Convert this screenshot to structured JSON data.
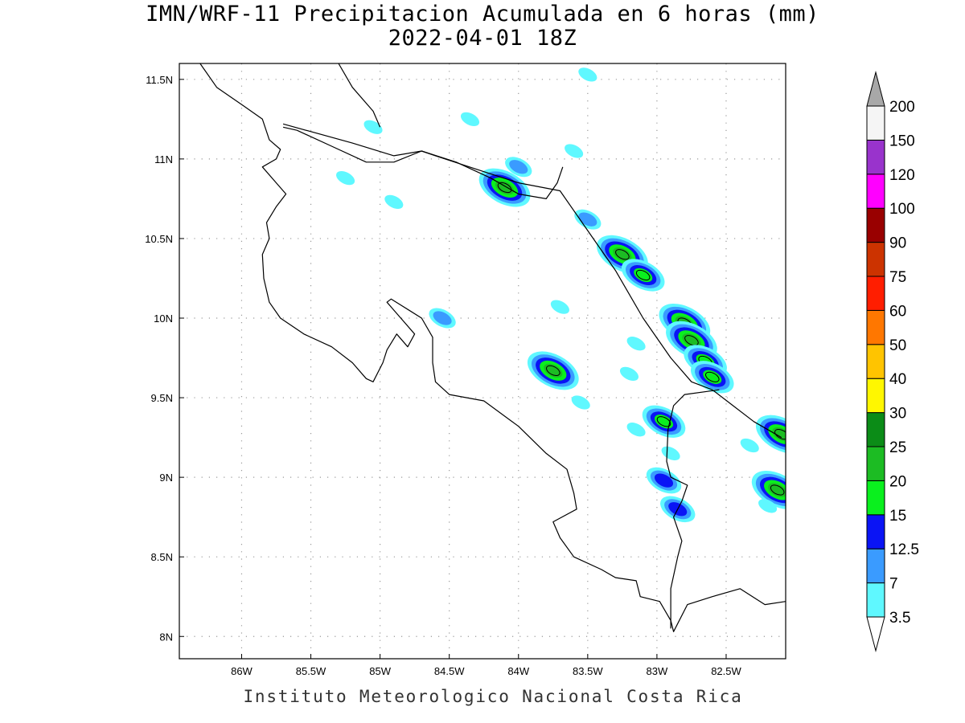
{
  "title": "IMN/WRF-11 Precipitacion Acumulada en 6 horas (mm)",
  "subtitle": "2022-04-01 18Z",
  "credit": "Instituto Meteorologico Nacional Costa Rica",
  "map": {
    "lon_range": [
      -86.45,
      -82.07
    ],
    "lat_range": [
      7.86,
      11.6
    ],
    "lon_ticks": [
      {
        "value": -86.0,
        "label": "86W"
      },
      {
        "value": -85.5,
        "label": "85.5W"
      },
      {
        "value": -85.0,
        "label": "85W"
      },
      {
        "value": -84.5,
        "label": "84.5W"
      },
      {
        "value": -84.0,
        "label": "84W"
      },
      {
        "value": -83.5,
        "label": "83.5W"
      },
      {
        "value": -83.0,
        "label": "83W"
      },
      {
        "value": -82.5,
        "label": "82.5W"
      }
    ],
    "lat_ticks": [
      {
        "value": 11.5,
        "label": "11.5N"
      },
      {
        "value": 11.0,
        "label": "11N"
      },
      {
        "value": 10.5,
        "label": "10.5N"
      },
      {
        "value": 10.0,
        "label": "10N"
      },
      {
        "value": 9.5,
        "label": "9.5N"
      },
      {
        "value": 9.0,
        "label": "9N"
      },
      {
        "value": 8.5,
        "label": "8.5N"
      },
      {
        "value": 8.0,
        "label": "8N"
      }
    ],
    "grid": true,
    "coastline": [
      [
        -86.3,
        11.6
      ],
      [
        -86.18,
        11.45
      ],
      [
        -85.98,
        11.33
      ],
      [
        -85.85,
        11.25
      ],
      [
        -85.8,
        11.12
      ],
      [
        -85.72,
        11.06
      ],
      [
        -85.75,
        11.0
      ],
      [
        -85.85,
        10.95
      ],
      [
        -85.75,
        10.85
      ],
      [
        -85.68,
        10.78
      ],
      [
        -85.75,
        10.7
      ],
      [
        -85.82,
        10.6
      ],
      [
        -85.8,
        10.5
      ],
      [
        -85.85,
        10.4
      ],
      [
        -85.84,
        10.25
      ],
      [
        -85.8,
        10.1
      ],
      [
        -85.72,
        10.0
      ],
      [
        -85.55,
        9.9
      ],
      [
        -85.35,
        9.82
      ],
      [
        -85.2,
        9.72
      ],
      [
        -85.1,
        9.62
      ],
      [
        -85.05,
        9.6
      ],
      [
        -84.98,
        9.72
      ],
      [
        -84.95,
        9.8
      ],
      [
        -84.88,
        9.9
      ],
      [
        -84.8,
        9.82
      ],
      [
        -84.75,
        9.9
      ],
      [
        -84.85,
        10.0
      ],
      [
        -84.9,
        10.05
      ],
      [
        -84.95,
        10.1
      ],
      [
        -84.92,
        10.12
      ],
      [
        -84.7,
        10.0
      ],
      [
        -84.62,
        9.88
      ],
      [
        -84.62,
        9.72
      ],
      [
        -84.6,
        9.6
      ],
      [
        -84.5,
        9.52
      ],
      [
        -84.25,
        9.48
      ],
      [
        -84.0,
        9.32
      ],
      [
        -83.8,
        9.15
      ],
      [
        -83.65,
        9.05
      ],
      [
        -83.6,
        8.9
      ],
      [
        -83.58,
        8.8
      ],
      [
        -83.75,
        8.72
      ],
      [
        -83.7,
        8.62
      ],
      [
        -83.6,
        8.5
      ],
      [
        -83.4,
        8.42
      ],
      [
        -83.3,
        8.37
      ],
      [
        -83.15,
        8.35
      ],
      [
        -83.12,
        8.25
      ],
      [
        -82.98,
        8.22
      ],
      [
        -82.9,
        8.1
      ],
      [
        -82.88,
        8.03
      ],
      [
        -82.78,
        8.2
      ],
      [
        -82.6,
        8.25
      ],
      [
        -82.4,
        8.3
      ],
      [
        -82.22,
        8.2
      ],
      [
        -82.07,
        8.22
      ]
    ],
    "caribbean_coast": [
      [
        -85.7,
        11.22
      ],
      [
        -85.2,
        11.1
      ],
      [
        -84.9,
        11.02
      ],
      [
        -84.7,
        11.05
      ],
      [
        -84.6,
        11.02
      ],
      [
        -84.25,
        10.92
      ],
      [
        -84.0,
        10.85
      ],
      [
        -83.7,
        10.8
      ],
      [
        -83.5,
        10.55
      ],
      [
        -83.3,
        10.3
      ],
      [
        -83.1,
        10.0
      ],
      [
        -82.9,
        9.75
      ],
      [
        -82.75,
        9.6
      ],
      [
        -82.6,
        9.55
      ],
      [
        -82.45,
        9.45
      ],
      [
        -82.3,
        9.35
      ],
      [
        -82.2,
        9.3
      ],
      [
        -82.1,
        9.25
      ]
    ],
    "border_north": [
      [
        -85.7,
        11.2
      ],
      [
        -85.6,
        11.18
      ],
      [
        -85.35,
        11.08
      ],
      [
        -85.1,
        10.98
      ],
      [
        -84.9,
        10.98
      ],
      [
        -84.7,
        11.05
      ],
      [
        -84.45,
        10.98
      ],
      [
        -84.2,
        10.88
      ],
      [
        -84.0,
        10.78
      ],
      [
        -83.8,
        10.75
      ],
      [
        -83.72,
        10.85
      ],
      [
        -83.68,
        10.95
      ]
    ],
    "border_east": [
      [
        -82.55,
        9.55
      ],
      [
        -82.8,
        9.52
      ],
      [
        -82.88,
        9.45
      ],
      [
        -82.92,
        9.3
      ],
      [
        -82.93,
        9.1
      ],
      [
        -82.9,
        9.0
      ],
      [
        -82.78,
        8.95
      ],
      [
        -82.82,
        8.85
      ],
      [
        -82.88,
        8.75
      ],
      [
        -82.82,
        8.6
      ],
      [
        -82.85,
        8.5
      ],
      [
        -82.9,
        8.3
      ],
      [
        -82.9,
        8.05
      ]
    ],
    "lake_nicaragua_shore": [
      [
        -85.3,
        11.6
      ],
      [
        -85.2,
        11.45
      ],
      [
        -85.05,
        11.3
      ],
      [
        -85.0,
        11.2
      ]
    ]
  },
  "precip_cells": [
    {
      "lon": -84.1,
      "lat": 10.82,
      "value": 20
    },
    {
      "lon": -83.25,
      "lat": 10.4,
      "value": 20
    },
    {
      "lon": -82.8,
      "lat": 9.97,
      "value": 20
    },
    {
      "lon": -82.75,
      "lat": 9.86,
      "value": 20
    },
    {
      "lon": -83.75,
      "lat": 9.67,
      "value": 20
    },
    {
      "lon": -82.1,
      "lat": 9.27,
      "value": 20
    },
    {
      "lon": -82.13,
      "lat": 8.92,
      "value": 20
    },
    {
      "lon": -82.65,
      "lat": 9.73,
      "value": 15
    },
    {
      "lon": -82.6,
      "lat": 9.63,
      "value": 15
    },
    {
      "lon": -83.1,
      "lat": 10.27,
      "value": 15
    },
    {
      "lon": -82.95,
      "lat": 9.35,
      "value": 15
    },
    {
      "lon": -82.85,
      "lat": 8.8,
      "value": 12.5
    },
    {
      "lon": -82.95,
      "lat": 8.98,
      "value": 12.5
    },
    {
      "lon": -83.5,
      "lat": 10.62,
      "value": 7
    },
    {
      "lon": -84.0,
      "lat": 10.95,
      "value": 7
    },
    {
      "lon": -84.55,
      "lat": 10.0,
      "value": 7
    },
    {
      "lon": -83.5,
      "lat": 11.53,
      "value": 3.5
    },
    {
      "lon": -85.25,
      "lat": 10.88,
      "value": 3.5
    },
    {
      "lon": -84.9,
      "lat": 10.73,
      "value": 3.5
    },
    {
      "lon": -85.05,
      "lat": 11.2,
      "value": 3.5
    },
    {
      "lon": -84.35,
      "lat": 11.25,
      "value": 3.5
    },
    {
      "lon": -83.6,
      "lat": 11.05,
      "value": 3.5
    },
    {
      "lon": -83.15,
      "lat": 9.84,
      "value": 3.5
    },
    {
      "lon": -82.9,
      "lat": 9.15,
      "value": 3.5
    },
    {
      "lon": -83.2,
      "lat": 9.65,
      "value": 3.5
    },
    {
      "lon": -83.55,
      "lat": 9.47,
      "value": 3.5
    },
    {
      "lon": -83.7,
      "lat": 10.07,
      "value": 3.5
    },
    {
      "lon": -82.33,
      "lat": 9.2,
      "value": 3.5
    },
    {
      "lon": -82.2,
      "lat": 8.82,
      "value": 3.5
    },
    {
      "lon": -83.15,
      "lat": 9.3,
      "value": 3.5
    }
  ],
  "colorbar": {
    "levels": [
      "3.5",
      "7",
      "12.5",
      "15",
      "20",
      "25",
      "30",
      "40",
      "50",
      "60",
      "75",
      "90",
      "100",
      "120",
      "150",
      "200"
    ],
    "colors": [
      "#5ff8ff",
      "#3a9bff",
      "#0a14f5",
      "#0af01e",
      "#1cbc23",
      "#0b8c17",
      "#fff700",
      "#ffc400",
      "#ff7700",
      "#ff1e00",
      "#cc3300",
      "#990000",
      "#ff00ff",
      "#9933cc",
      "#f5f5f5"
    ],
    "under_color": "#ffffff",
    "over_color": "#a8a8a8"
  }
}
